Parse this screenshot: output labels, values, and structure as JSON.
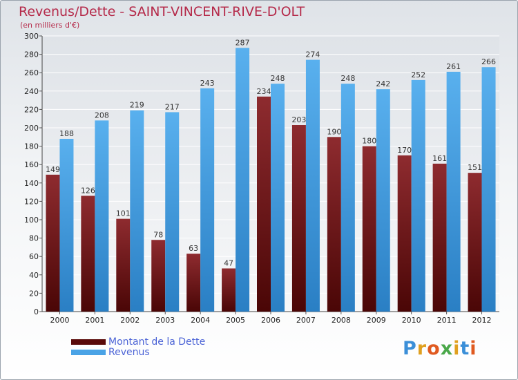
{
  "title": "Revenus/Dette - SAINT-VINCENT-RIVE-D'OLT",
  "subtitle": "(en milliers d'€)",
  "colors": {
    "title": "#b52a4a",
    "debt": "#7a1a1e",
    "revenue": "#4aa3e6",
    "legend_text": "#4b63d6"
  },
  "legend": [
    {
      "label": "Montant de la Dette",
      "color": "#5a0a0a"
    },
    {
      "label": "Revenus",
      "color": "#4aa3e6"
    }
  ],
  "logo": {
    "text": "Proxiti",
    "letter_colors": [
      "#3b8fd8",
      "#e0a020",
      "#e05a20",
      "#4aa84a",
      "#e0a020",
      "#3b8fd8",
      "#e05a20"
    ]
  },
  "chart_data": {
    "type": "bar",
    "categories": [
      "2000",
      "2001",
      "2002",
      "2003",
      "2004",
      "2005",
      "2006",
      "2007",
      "2008",
      "2009",
      "2010",
      "2011",
      "2012"
    ],
    "series": [
      {
        "name": "Montant de la Dette",
        "values": [
          149,
          126,
          101,
          78,
          63,
          47,
          234,
          203,
          190,
          180,
          170,
          161,
          151
        ]
      },
      {
        "name": "Revenus",
        "values": [
          188,
          208,
          219,
          217,
          243,
          287,
          248,
          274,
          248,
          242,
          252,
          261,
          266
        ]
      }
    ],
    "ylim": [
      0,
      300
    ],
    "yticks": [
      0,
      20,
      40,
      60,
      80,
      100,
      120,
      140,
      160,
      180,
      200,
      220,
      240,
      260,
      280,
      300
    ],
    "grid": true,
    "legend_position": "bottom-left"
  }
}
